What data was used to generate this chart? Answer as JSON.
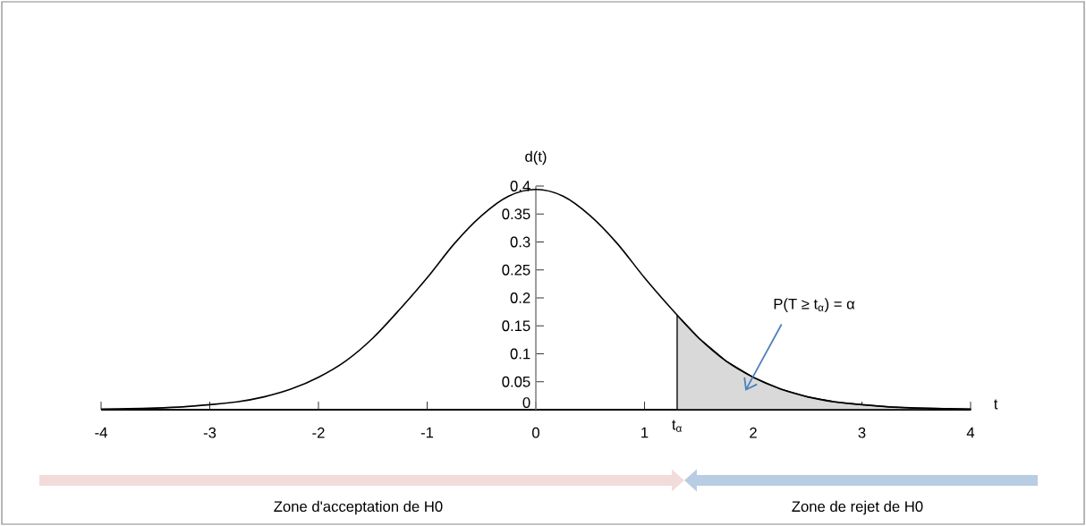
{
  "chart_data": {
    "type": "line",
    "xlabel": "t",
    "ylabel": "d(t)",
    "x": [
      -4,
      -3.75,
      -3.5,
      -3.25,
      -3,
      -2.75,
      -2.5,
      -2.25,
      -2,
      -1.75,
      -1.5,
      -1.25,
      -1,
      -0.75,
      -0.5,
      -0.25,
      0,
      0.25,
      0.5,
      0.75,
      1,
      1.25,
      1.5,
      1.75,
      2,
      2.25,
      2.5,
      2.75,
      3,
      3.25,
      3.5,
      3.75,
      4
    ],
    "series": [
      {
        "color": "#000000",
        "values": [
          0.001,
          0.002,
          0.003,
          0.005,
          0.009,
          0.014,
          0.023,
          0.037,
          0.058,
          0.087,
          0.128,
          0.18,
          0.236,
          0.297,
          0.347,
          0.382,
          0.394,
          0.382,
          0.347,
          0.297,
          0.236,
          0.18,
          0.128,
          0.087,
          0.058,
          0.037,
          0.023,
          0.014,
          0.009,
          0.005,
          0.003,
          0.002,
          0.001
        ]
      },
      {
        "type": "area",
        "color": "#d9d9d9",
        "x": [
          1.3,
          1.5,
          1.75,
          2,
          2.25,
          2.5,
          2.75,
          3,
          3.25,
          3.5,
          3.75,
          4
        ],
        "values": [
          0.169,
          0.128,
          0.087,
          0.058,
          0.037,
          0.023,
          0.014,
          0.009,
          0.005,
          0.003,
          0.002,
          0.001
        ]
      }
    ],
    "xlim": [
      -4,
      4
    ],
    "ylim": [
      0,
      0.4
    ],
    "xticks": [
      -4,
      -3,
      -2,
      -1,
      0,
      1,
      2,
      3,
      4
    ],
    "yticks": [
      0,
      0.05,
      0.1,
      0.15,
      0.2,
      0.25,
      0.3,
      0.35,
      0.4
    ],
    "annotations": [
      {
        "text": "t$_{α}$",
        "x": 1.3,
        "y": 0
      },
      "P(T ≥ t$_{α}$) = α",
      "Zone d'acceptation de H0",
      "Zone de rejet de H0"
    ],
    "grid": false,
    "marker": "none",
    "line_style": "solid"
  }
}
